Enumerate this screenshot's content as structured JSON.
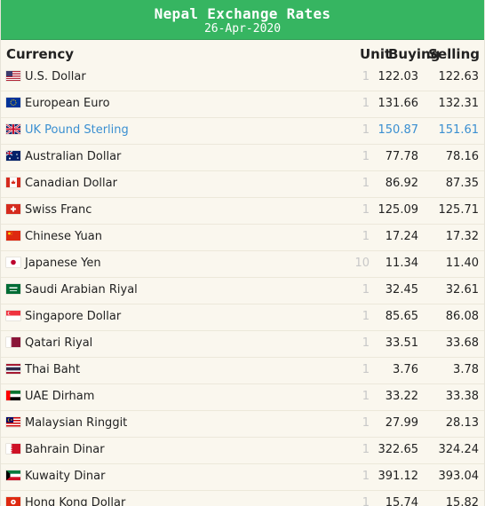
{
  "banner": {
    "title": "Nepal Exchange Rates",
    "date": "26-Apr-2020"
  },
  "columns": {
    "currency": "Currency",
    "unit": "Unit",
    "buying": "Buying",
    "selling": "Selling"
  },
  "colors": {
    "banner_green": "#36b561",
    "highlight_blue": "#3a8fd1",
    "background": "#faf7ee"
  },
  "rates": [
    {
      "flag": "us-flag-icon",
      "name": "U.S. Dollar",
      "unit": "1",
      "buy": "122.03",
      "sell": "122.63"
    },
    {
      "flag": "eu-flag-icon",
      "name": "European Euro",
      "unit": "1",
      "buy": "131.66",
      "sell": "132.31"
    },
    {
      "flag": "uk-flag-icon",
      "name": "UK Pound Sterling",
      "unit": "1",
      "buy": "150.87",
      "sell": "151.61",
      "highlighted": true
    },
    {
      "flag": "au-flag-icon",
      "name": "Australian Dollar",
      "unit": "1",
      "buy": "77.78",
      "sell": "78.16"
    },
    {
      "flag": "ca-flag-icon",
      "name": "Canadian Dollar",
      "unit": "1",
      "buy": "86.92",
      "sell": "87.35"
    },
    {
      "flag": "ch-flag-icon",
      "name": "Swiss Franc",
      "unit": "1",
      "buy": "125.09",
      "sell": "125.71"
    },
    {
      "flag": "cn-flag-icon",
      "name": "Chinese Yuan",
      "unit": "1",
      "buy": "17.24",
      "sell": "17.32"
    },
    {
      "flag": "jp-flag-icon",
      "name": "Japanese Yen",
      "unit": "10",
      "buy": "11.34",
      "sell": "11.40"
    },
    {
      "flag": "sa-flag-icon",
      "name": "Saudi Arabian Riyal",
      "unit": "1",
      "buy": "32.45",
      "sell": "32.61"
    },
    {
      "flag": "sg-flag-icon",
      "name": "Singapore Dollar",
      "unit": "1",
      "buy": "85.65",
      "sell": "86.08"
    },
    {
      "flag": "qa-flag-icon",
      "name": "Qatari Riyal",
      "unit": "1",
      "buy": "33.51",
      "sell": "33.68"
    },
    {
      "flag": "th-flag-icon",
      "name": "Thai Baht",
      "unit": "1",
      "buy": "3.76",
      "sell": "3.78"
    },
    {
      "flag": "ae-flag-icon",
      "name": "UAE Dirham",
      "unit": "1",
      "buy": "33.22",
      "sell": "33.38"
    },
    {
      "flag": "my-flag-icon",
      "name": "Malaysian Ringgit",
      "unit": "1",
      "buy": "27.99",
      "sell": "28.13"
    },
    {
      "flag": "bh-flag-icon",
      "name": "Bahrain Dinar",
      "unit": "1",
      "buy": "322.65",
      "sell": "324.24"
    },
    {
      "flag": "kw-flag-icon",
      "name": "Kuwaity Dinar",
      "unit": "1",
      "buy": "391.12",
      "sell": "393.04"
    },
    {
      "flag": "hk-flag-icon",
      "name": "Hong Kong Dollar",
      "unit": "1",
      "buy": "15.74",
      "sell": "15.82"
    }
  ]
}
